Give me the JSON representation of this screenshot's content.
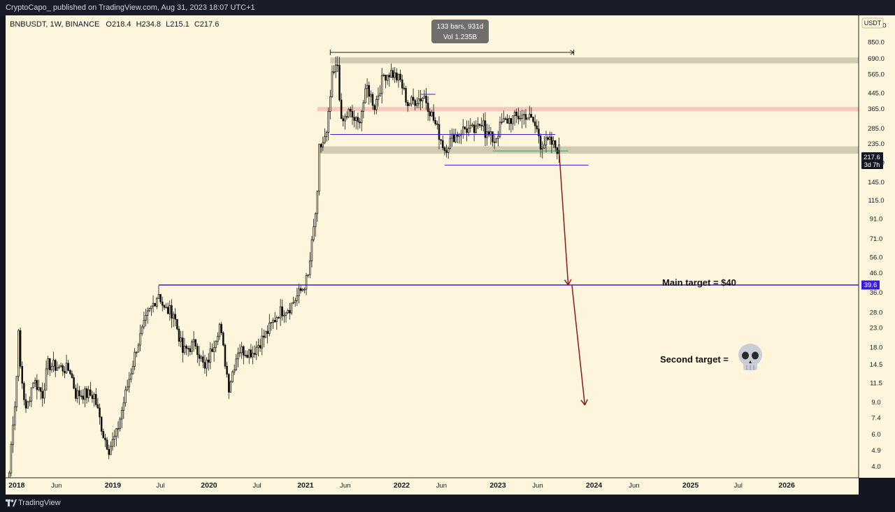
{
  "header": {
    "published_line": "CryptoCapo_ published on TradingView.com, Aug 31, 2023 18:07 UTC+1"
  },
  "footer": {
    "brand": "TradingView"
  },
  "chart_info": {
    "symbol_line": "BNBUSDT, 1W, BINANCE",
    "open": "O218.4",
    "high": "H234.8",
    "low": "L215.1",
    "close": "C217.6",
    "currency": "USDT",
    "current_price": "217.6",
    "countdown": "3d 7h",
    "level_badge": "39.6"
  },
  "measure": {
    "bars_line": "133 bars, 931d",
    "vol_line": "Vol 1.235B"
  },
  "annotations": {
    "main_target": "Main target = $40",
    "second_target": "Second target ="
  },
  "colors": {
    "background": "#fdf6dc",
    "candle": "#111111",
    "target_line": "#3a1fd1",
    "arrow": "#8b1a1a",
    "support_zone": "#d2cbb4",
    "resistance_zone": "#f7c8bb"
  },
  "chart_data": {
    "type": "candlestick",
    "title": "BNBUSDT, 1W, BINANCE",
    "y_scale": "log",
    "ylim": [
      3.6,
      1150
    ],
    "y_ticks": [
      "1050.0",
      "850.0",
      "690.0",
      "565.0",
      "445.0",
      "365.0",
      "285.0",
      "235.0",
      "185.0",
      "145.0",
      "115.0",
      "91.0",
      "71.0",
      "56.0",
      "46.0",
      "36.0",
      "28.0",
      "23.0",
      "18.0",
      "14.5",
      "11.5",
      "9.0",
      "7.4",
      "6.0",
      "4.9",
      "4.0"
    ],
    "x_ticks": [
      "2018",
      "Jun",
      "2019",
      "Jul",
      "2020",
      "Jul",
      "2021",
      "Jun",
      "2022",
      "Jun",
      "2023",
      "Jun",
      "2024",
      "Jun",
      "2025",
      "Jul",
      "2026"
    ],
    "x_range": [
      "2017-11-20",
      "2026-10-01"
    ],
    "weekly_close_path": [
      [
        "2017-11-20",
        2.0
      ],
      [
        "2017-12-11",
        5.5
      ],
      [
        "2017-12-25",
        8.5
      ],
      [
        "2018-01-08",
        21.0
      ],
      [
        "2018-01-15",
        14.0
      ],
      [
        "2018-02-05",
        8.0
      ],
      [
        "2018-03-05",
        12.0
      ],
      [
        "2018-04-09",
        10.0
      ],
      [
        "2018-04-30",
        14.5
      ],
      [
        "2018-06-11",
        14.0
      ],
      [
        "2018-07-23",
        13.5
      ],
      [
        "2018-08-13",
        10.0
      ],
      [
        "2018-09-17",
        10.0
      ],
      [
        "2018-10-22",
        9.8
      ],
      [
        "2018-11-26",
        6.0
      ],
      [
        "2018-12-17",
        5.0
      ],
      [
        "2019-01-14",
        6.0
      ],
      [
        "2019-02-18",
        10.0
      ],
      [
        "2019-04-01",
        18.0
      ],
      [
        "2019-05-13",
        27.0
      ],
      [
        "2019-06-24",
        36.0
      ],
      [
        "2019-07-15",
        29.0
      ],
      [
        "2019-08-19",
        28.0
      ],
      [
        "2019-09-23",
        17.0
      ],
      [
        "2019-11-11",
        19.0
      ],
      [
        "2019-12-16",
        13.5
      ],
      [
        "2020-02-10",
        24.0
      ],
      [
        "2020-03-16",
        11.0
      ],
      [
        "2020-04-20",
        17.5
      ],
      [
        "2020-06-15",
        17.0
      ],
      [
        "2020-08-10",
        22.0
      ],
      [
        "2020-09-21",
        28.0
      ],
      [
        "2020-11-02",
        30.0
      ],
      [
        "2020-12-21",
        38.0
      ],
      [
        "2021-01-11",
        44.0
      ],
      [
        "2021-02-15",
        120.0
      ],
      [
        "2021-02-22",
        220.0
      ],
      [
        "2021-03-22",
        260.0
      ],
      [
        "2021-04-12",
        540.0
      ],
      [
        "2021-05-03",
        640.0
      ],
      [
        "2021-05-17",
        300.0
      ],
      [
        "2021-06-14",
        350.0
      ],
      [
        "2021-07-19",
        300.0
      ],
      [
        "2021-08-23",
        480.0
      ],
      [
        "2021-09-20",
        380.0
      ],
      [
        "2021-10-25",
        560.0
      ],
      [
        "2021-11-22",
        580.0
      ],
      [
        "2021-12-27",
        520.0
      ],
      [
        "2022-01-24",
        390.0
      ],
      [
        "2022-03-28",
        430.0
      ],
      [
        "2022-05-09",
        300.0
      ],
      [
        "2022-06-13",
        220.0
      ],
      [
        "2022-07-18",
        260.0
      ],
      [
        "2022-08-29",
        285.0
      ],
      [
        "2022-10-10",
        275.0
      ],
      [
        "2022-11-07",
        330.0
      ],
      [
        "2022-11-14",
        270.0
      ],
      [
        "2022-12-19",
        245.0
      ],
      [
        "2023-01-16",
        305.0
      ],
      [
        "2023-02-13",
        320.0
      ],
      [
        "2023-04-17",
        340.0
      ],
      [
        "2023-05-15",
        310.0
      ],
      [
        "2023-06-05",
        265.0
      ],
      [
        "2023-06-12",
        235.0
      ],
      [
        "2023-07-17",
        240.0
      ],
      [
        "2023-08-21",
        218.0
      ]
    ],
    "levels": [
      {
        "value": 39.6,
        "from": "2019-06-24",
        "to": "2026-10-01",
        "label": "Main target = $40"
      },
      {
        "value": 440,
        "from": "2022-03-14",
        "to": "2022-05-09"
      },
      {
        "value": 265,
        "from": "2021-04-05",
        "to": "2023-08-07"
      },
      {
        "value": 180,
        "from": "2022-06-13",
        "to": "2023-12-11"
      },
      {
        "value": 215,
        "from": "2022-12-12",
        "to": "2023-09-25"
      }
    ],
    "zones": [
      {
        "low": 650,
        "high": 700,
        "from": "2021-04-05",
        "to": "2026-10-01",
        "kind": "resistance"
      },
      {
        "low": 355,
        "high": 375,
        "from": "2021-02-15",
        "to": "2026-10-01",
        "kind": "resistance-red"
      },
      {
        "low": 208,
        "high": 228,
        "from": "2021-02-22",
        "to": "2026-10-01",
        "kind": "support"
      }
    ],
    "projection_arrows": [
      {
        "from": [
          "2023-08-21",
          218
        ],
        "to": [
          "2023-09-25",
          39.6
        ]
      },
      {
        "from": [
          "2023-10-09",
          39.6
        ],
        "to": [
          "2023-11-27",
          8.7
        ]
      }
    ],
    "measure_range": [
      "2021-04-05",
      "2023-10-16"
    ]
  }
}
